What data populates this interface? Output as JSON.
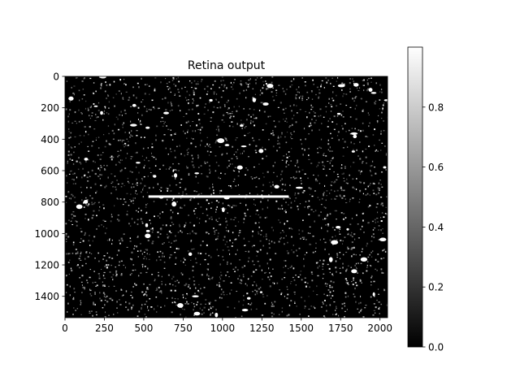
{
  "chart_data": {
    "type": "heatmap",
    "title": "Retina output",
    "xlabel": "",
    "ylabel": "",
    "colormap": "gray",
    "image_width": 2048,
    "image_height": 1536,
    "xlim": [
      0,
      2048
    ],
    "ylim": [
      1536,
      0
    ],
    "x_ticks": [
      0,
      250,
      500,
      750,
      1000,
      1250,
      1500,
      1750,
      2000
    ],
    "y_ticks": [
      0,
      200,
      400,
      600,
      800,
      1000,
      1200,
      1400
    ],
    "colorbar": {
      "range": [
        0.0,
        1.0
      ],
      "ticks": [
        0.0,
        0.2,
        0.4,
        0.6,
        0.8
      ],
      "tick_labels": [
        "0.0",
        "0.2",
        "0.4",
        "0.6",
        "0.8"
      ]
    },
    "description_features": {
      "background_value": 0.0,
      "bright_line": {
        "x_start": 530,
        "x_end": 1420,
        "y": 765,
        "value": 1.0
      },
      "texture": "sparse speckled edge response, denser grey clusters in lower-left and lower-right corners"
    }
  },
  "colors": {
    "background": "#000000",
    "foreground": "#ffffff",
    "axis": "#000000"
  }
}
